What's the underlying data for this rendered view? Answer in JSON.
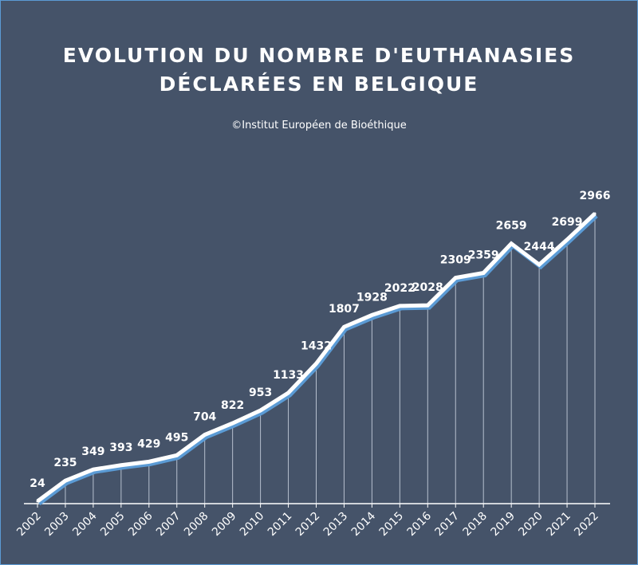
{
  "title_line1": "EVOLUTION DU NOMBRE D'EUTHANASIES",
  "title_line2": "DÉCLARÉES EN BELGIQUE",
  "subtitle": "©Institut Européen de Bioéthique",
  "colors": {
    "background": "#455369",
    "line": "#ffffff",
    "line_shadow": "#5b9bd5",
    "text": "#ffffff"
  },
  "chart_data": {
    "type": "line",
    "title": "EVOLUTION DU NOMBRE D'EUTHANASIES DÉCLARÉES EN BELGIQUE",
    "subtitle": "©Institut Européen de Bioéthique",
    "categories": [
      "2002",
      "2003",
      "2004",
      "2005",
      "2006",
      "2007",
      "2008",
      "2009",
      "2010",
      "2011",
      "2012",
      "2013",
      "2014",
      "2015",
      "2016",
      "2017",
      "2018",
      "2019",
      "2020",
      "2021",
      "2022"
    ],
    "series": [
      {
        "values": [
          24,
          235,
          349,
          393,
          429,
          495,
          704,
          822,
          953,
          1133,
          1432,
          1807,
          1928,
          2022,
          2028,
          2309,
          2359,
          2659,
          2444,
          2699,
          2966
        ]
      }
    ],
    "data_labels": true,
    "grid": false,
    "legend": "none",
    "xlabel": "",
    "ylabel": ""
  }
}
